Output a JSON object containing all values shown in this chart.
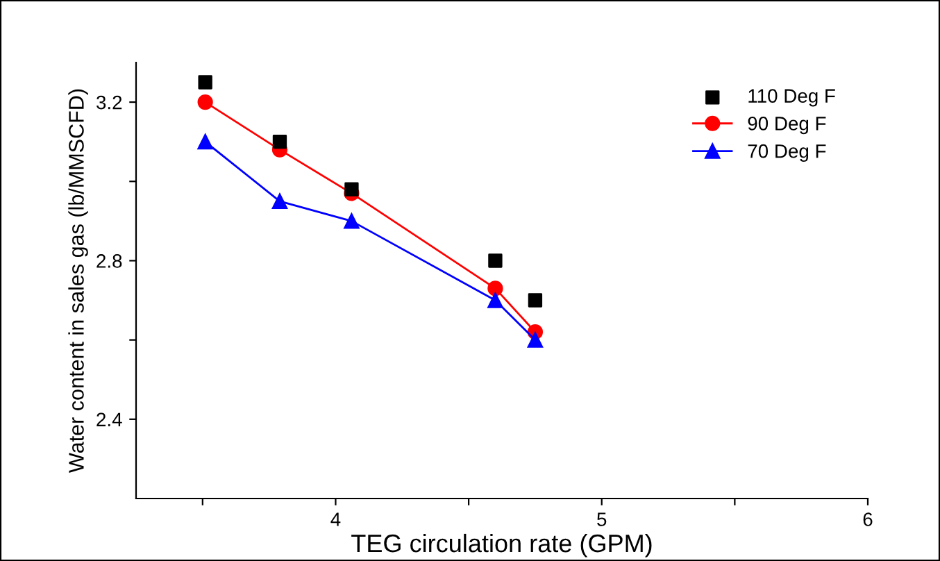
{
  "chart_data": {
    "type": "line",
    "xlabel": "TEG circulation rate (GPM)",
    "ylabel": "Water content in sales gas (lb/MMSCFD)",
    "x": [
      3.51,
      3.79,
      4.06,
      4.6,
      4.75
    ],
    "series": [
      {
        "name": "110 Deg F",
        "color": "#000000",
        "type": "scatter",
        "marker": "square",
        "values": [
          3.25,
          3.1,
          2.98,
          2.8,
          2.7
        ]
      },
      {
        "name": "90 Deg F",
        "color": "#ff0000",
        "marker": "circle",
        "values": [
          3.2,
          3.08,
          2.97,
          2.73,
          2.62
        ]
      },
      {
        "name": "70 Deg F",
        "color": "#0000ff",
        "marker": "triangle",
        "values": [
          3.1,
          2.95,
          2.9,
          2.7,
          2.6
        ]
      }
    ],
    "xlim": [
      3.25,
      6
    ],
    "ylim": [
      2.2,
      3.3
    ],
    "xticks": [
      {
        "value": 3.5,
        "label": null
      },
      4,
      {
        "value": 4.5,
        "label": null
      },
      5,
      {
        "value": 5.5,
        "label": null
      },
      6
    ],
    "yticks": [
      2.4,
      {
        "value": 2.6,
        "label": null
      },
      2.8,
      {
        "value": 3.0,
        "label": null
      },
      3.2
    ],
    "legend": "top right",
    "grid": false
  }
}
